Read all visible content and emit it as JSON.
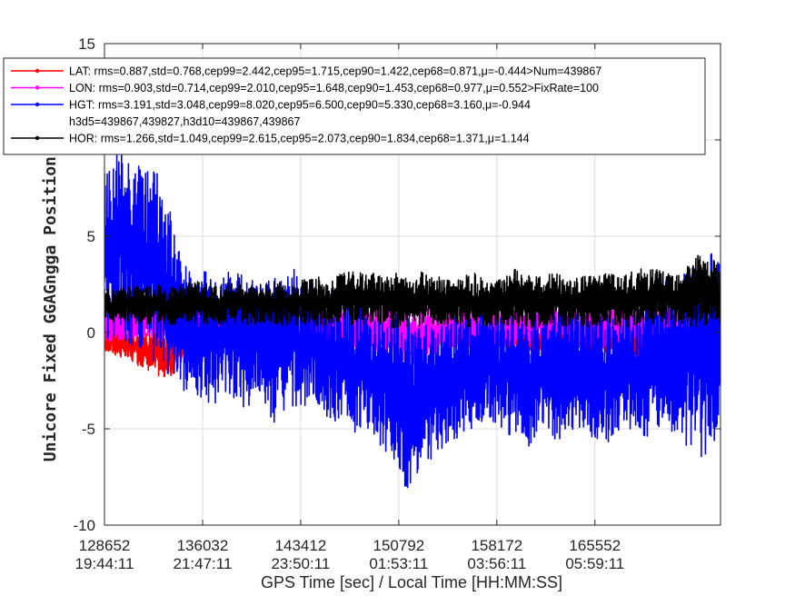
{
  "chart_data": {
    "type": "line",
    "ylabel": "Unicore Fixed GGAGngga Position [cm]",
    "xlabel": "GPS Time [sec] / Local Time [HH:MM:SS]",
    "xlim": [
      128652,
      175000
    ],
    "ylim": [
      -10,
      15
    ],
    "yticks": [
      -10,
      -5,
      0,
      5,
      10,
      15
    ],
    "ytick_labels": [
      "-10",
      "-5",
      "0",
      "5",
      "",
      "15"
    ],
    "xticks": [
      {
        "value": 128652,
        "gps": "128652",
        "local": "19:44:11"
      },
      {
        "value": 136032,
        "gps": "136032",
        "local": "21:47:11"
      },
      {
        "value": 143412,
        "gps": "143412",
        "local": "23:50:11"
      },
      {
        "value": 150792,
        "gps": "150792",
        "local": "01:53:11"
      },
      {
        "value": 158172,
        "gps": "158172",
        "local": "03:56:11"
      },
      {
        "value": 165552,
        "gps": "165552",
        "local": "05:59:11"
      }
    ],
    "grid": true,
    "legend_position": "top",
    "series": [
      {
        "name": "LAT",
        "legend": [
          "LAT: rms=0.887,std=0.768,cep99=2.442,cep95=1.715,cep90=1.422,cep68=0.871,μ=-0.444>Num=439867"
        ],
        "color": "#ff0000",
        "x": [
          128652,
          129500,
          130500,
          131500,
          132500,
          133500,
          134500,
          135500,
          136500,
          137500,
          138500,
          139500,
          140500,
          141500,
          142500,
          143500,
          144500,
          145500,
          146500,
          147500,
          148500,
          149500,
          150500,
          151500,
          152500,
          153500,
          154500,
          155500,
          156500,
          157500,
          158500,
          159500,
          160500,
          161500,
          162500,
          163500,
          164500,
          165500,
          166500,
          167500,
          168500,
          169500,
          170500,
          171500,
          172500,
          173500,
          174500,
          175000
        ],
        "hi": [
          0.3,
          0.2,
          0.1,
          0.3,
          0.2,
          0.0,
          0.2,
          0.1,
          0.3,
          0.2,
          0.3,
          0.1,
          0.2,
          0.3,
          0.2,
          0.3,
          0.1,
          0.2,
          0.3,
          0.1,
          0.2,
          0.1,
          0.2,
          0.2,
          0.3,
          0.1,
          0.2,
          0.1,
          0.3,
          0.2,
          0.1,
          0.2,
          0.3,
          0.2,
          0.1,
          0.3,
          0.2,
          0.2,
          0.1,
          0.2,
          0.3,
          0.2,
          0.2,
          0.3,
          0.1,
          0.2,
          0.2,
          0.1
        ],
        "lo": [
          -1.0,
          -1.2,
          -1.5,
          -1.8,
          -2.2,
          -2.5,
          -1.6,
          -1.2,
          -1.0,
          -0.8,
          -0.6,
          -0.6,
          -0.5,
          -0.5,
          -0.4,
          -0.5,
          -0.6,
          -0.6,
          -0.8,
          -0.9,
          -0.8,
          -0.6,
          -0.9,
          -0.8,
          -0.7,
          -0.7,
          -0.8,
          -0.8,
          -0.9,
          -1.0,
          -0.8,
          -0.9,
          -1.0,
          -1.0,
          -1.0,
          -0.9,
          -1.0,
          -1.2,
          -1.0,
          -1.1,
          -1.3,
          -1.6,
          -1.8,
          -1.5,
          -1.7,
          -2.0,
          -2.0,
          -2.1
        ]
      },
      {
        "name": "LON",
        "legend": [
          "LON: rms=0.903,std=0.714,cep99=2.010,cep95=1.648,cep90=1.453,cep68=0.977,μ=0.552>FixRate=100"
        ],
        "color": "#ff00ff",
        "x": [
          128652,
          129500,
          130500,
          131500,
          132500,
          133500,
          134500,
          135500,
          136500,
          137500,
          138500,
          139500,
          140500,
          141500,
          142500,
          143500,
          144500,
          145500,
          146500,
          147500,
          148500,
          149500,
          150500,
          151500,
          152500,
          153500,
          154500,
          155500,
          156500,
          157500,
          158500,
          159500,
          160500,
          161500,
          162500,
          163500,
          164500,
          165500,
          166500,
          167500,
          168500,
          169500,
          170500,
          171500,
          172500,
          173500,
          174500,
          175000
        ],
        "hi": [
          1.5,
          1.4,
          1.3,
          1.4,
          1.5,
          1.3,
          1.4,
          1.3,
          1.2,
          1.4,
          1.3,
          1.2,
          1.5,
          1.3,
          1.4,
          1.2,
          1.3,
          1.6,
          1.3,
          1.4,
          1.5,
          1.4,
          1.3,
          1.5,
          1.4,
          1.3,
          1.4,
          1.5,
          1.3,
          1.4,
          1.5,
          1.3,
          1.4,
          1.5,
          1.3,
          1.4,
          1.3,
          1.5,
          1.4,
          1.3,
          1.5,
          1.4,
          1.3,
          1.4,
          1.5,
          1.6,
          1.4,
          1.3
        ],
        "lo": [
          -0.5,
          -0.4,
          -0.5,
          -0.3,
          -0.4,
          -0.5,
          -0.4,
          -0.3,
          -0.4,
          -0.5,
          -0.4,
          -0.3,
          -0.5,
          -0.4,
          -0.5,
          -0.6,
          -0.5,
          -0.6,
          -0.7,
          -0.8,
          -0.8,
          -1.2,
          -1.4,
          -1.7,
          -1.8,
          -1.2,
          -0.8,
          -0.9,
          -1.0,
          -0.8,
          -0.7,
          -0.8,
          -0.7,
          -0.6,
          -0.8,
          -0.7,
          -0.8,
          -0.9,
          -0.7,
          -0.6,
          -0.7,
          -0.8,
          -0.7,
          -0.6,
          -0.7,
          -0.6,
          -0.7,
          -0.6
        ]
      },
      {
        "name": "HGT",
        "legend": [
          "HGT: rms=3.191,std=3.048,cep99=8.020,cep95=6.500,cep90=5.330,cep68=3.160,μ=-0.944",
          "h3d5=439867,439827,h3d10=439867,439867"
        ],
        "color": "#0000ff",
        "x": [
          128652,
          129500,
          130500,
          131500,
          132500,
          133500,
          134500,
          135500,
          136500,
          137500,
          138500,
          139500,
          140500,
          141500,
          142500,
          143500,
          144500,
          145500,
          146500,
          147500,
          148500,
          149500,
          150500,
          151500,
          152500,
          153500,
          154500,
          155500,
          156500,
          157500,
          158500,
          159500,
          160500,
          161500,
          162500,
          163500,
          164500,
          165500,
          166500,
          167500,
          168500,
          169500,
          170500,
          171500,
          172500,
          173500,
          174500,
          175000
        ],
        "hi": [
          8.5,
          9.5,
          10.0,
          8.5,
          9.0,
          6.5,
          4.0,
          3.0,
          3.5,
          3.0,
          3.5,
          4.0,
          2.5,
          3.0,
          3.5,
          3.0,
          2.5,
          2.0,
          2.0,
          2.0,
          1.5,
          1.0,
          1.0,
          1.0,
          0.5,
          0.5,
          0.8,
          1.0,
          1.5,
          1.0,
          1.0,
          1.2,
          1.5,
          1.0,
          1.5,
          2.0,
          1.5,
          1.0,
          1.0,
          1.5,
          1.5,
          2.0,
          3.0,
          2.5,
          4.0,
          3.5,
          4.5,
          3.5
        ],
        "lo": [
          -0.5,
          -0.5,
          -0.8,
          -1.5,
          -1.5,
          -2.5,
          -3.0,
          -3.5,
          -4.0,
          -3.5,
          -3.8,
          -4.0,
          -3.5,
          -5.0,
          -4.2,
          -4.0,
          -3.5,
          -4.5,
          -4.8,
          -5.5,
          -5.0,
          -6.0,
          -7.0,
          -8.5,
          -7.0,
          -6.5,
          -6.0,
          -5.5,
          -5.0,
          -4.5,
          -5.0,
          -5.5,
          -6.0,
          -5.0,
          -6.0,
          -5.5,
          -5.0,
          -5.5,
          -6.0,
          -5.0,
          -5.5,
          -6.0,
          -5.0,
          -5.5,
          -6.0,
          -6.5,
          -6.0,
          -5.5
        ]
      },
      {
        "name": "HOR",
        "legend": [
          "HOR: rms=1.266,std=1.049,cep99=2.615,cep95=2.073,cep90=1.834,cep68=1.371,μ=1.144"
        ],
        "color": "#000000",
        "x": [
          128652,
          129500,
          130500,
          131500,
          132500,
          133500,
          134500,
          135500,
          136500,
          137500,
          138500,
          139500,
          140500,
          141500,
          142500,
          143500,
          144500,
          145500,
          146500,
          147500,
          148500,
          149500,
          150500,
          151500,
          152500,
          153500,
          154500,
          155500,
          156500,
          157500,
          158500,
          159500,
          160500,
          161500,
          162500,
          163500,
          164500,
          165500,
          166500,
          167500,
          168500,
          169500,
          170500,
          171500,
          172500,
          173500,
          174500,
          175000
        ],
        "hi": [
          2.3,
          2.2,
          2.5,
          2.4,
          2.6,
          2.3,
          2.5,
          2.7,
          2.6,
          2.4,
          2.8,
          2.6,
          2.5,
          2.7,
          2.5,
          2.8,
          3.0,
          2.6,
          3.1,
          3.2,
          3.0,
          3.3,
          3.1,
          2.8,
          3.2,
          3.0,
          2.8,
          2.9,
          3.1,
          2.7,
          2.8,
          3.3,
          3.0,
          2.9,
          3.1,
          2.8,
          2.9,
          3.0,
          3.1,
          3.0,
          3.2,
          3.4,
          3.3,
          3.2,
          3.6,
          4.2,
          3.8,
          3.4
        ],
        "lo": [
          0.6,
          0.5,
          0.5,
          0.4,
          0.5,
          0.4,
          0.5,
          0.4,
          0.3,
          0.4,
          0.3,
          0.4,
          0.5,
          0.4,
          0.3,
          0.4,
          0.3,
          0.4,
          0.3,
          0.4,
          0.5,
          0.3,
          0.2,
          0.3,
          0.2,
          0.3,
          0.4,
          0.3,
          0.2,
          0.3,
          0.4,
          0.3,
          0.2,
          0.3,
          0.4,
          0.3,
          0.2,
          0.3,
          0.4,
          0.3,
          0.2,
          0.3,
          0.4,
          0.3,
          0.2,
          0.3,
          0.4,
          0.3
        ]
      }
    ]
  }
}
